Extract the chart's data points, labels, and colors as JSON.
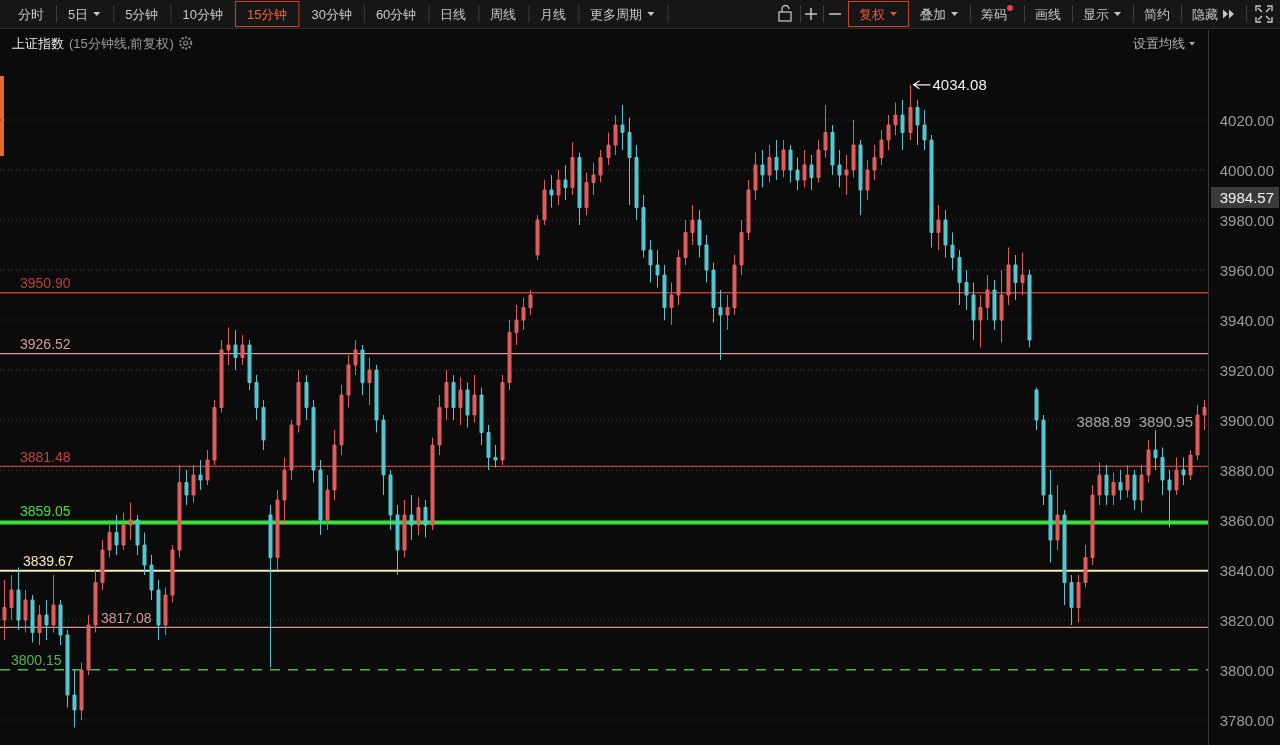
{
  "chart_data": {
    "type": "candlestick",
    "title": "上证指数",
    "subtitle": "(15分钟线,前复权)",
    "categories": [
      null,
      null,
      null,
      null,
      null,
      null,
      null,
      null,
      null,
      null,
      null,
      null,
      null,
      null,
      null,
      null,
      null,
      null,
      null,
      null,
      null,
      null,
      null,
      null,
      null,
      null,
      null,
      null,
      null,
      null,
      null,
      null,
      null,
      null,
      null,
      null,
      null,
      null,
      null,
      null,
      null,
      null,
      null,
      null,
      null,
      null,
      null,
      null,
      null,
      null,
      null,
      null,
      null,
      null,
      null,
      null,
      null,
      null,
      null,
      null,
      null,
      null,
      null,
      null,
      null,
      null,
      null,
      null,
      null,
      null,
      null,
      null,
      null,
      null,
      null,
      null,
      null,
      null,
      null,
      null,
      null,
      null,
      null,
      null,
      null,
      null,
      null,
      null,
      null,
      null,
      null,
      null,
      null,
      null,
      null,
      null,
      null,
      null,
      null,
      null,
      null,
      null,
      null,
      null,
      null,
      null,
      null,
      null,
      null,
      null,
      null,
      null,
      null,
      null,
      null,
      null,
      null,
      null,
      null,
      null,
      null,
      null,
      null,
      null,
      null,
      null,
      null,
      null,
      null,
      null,
      null,
      null,
      null,
      null,
      null,
      null,
      null,
      null,
      null,
      null,
      null,
      null,
      null,
      null,
      null,
      null,
      null,
      null,
      null,
      null,
      null,
      null,
      null,
      null,
      null,
      null,
      null,
      null,
      null,
      null,
      null,
      null,
      null,
      null,
      null,
      null,
      null,
      null,
      null,
      null,
      null,
      null
    ],
    "ohlc": [
      [
        3820,
        3836,
        3812,
        3825
      ],
      [
        3825,
        3838,
        3820,
        3832
      ],
      [
        3832,
        3841,
        3816,
        3820
      ],
      [
        3820,
        3832,
        3815,
        3828
      ],
      [
        3828,
        3830,
        3811,
        3815
      ],
      [
        3815,
        3826,
        3810,
        3822
      ],
      [
        3822,
        3828,
        3812,
        3818
      ],
      [
        3818,
        3838,
        3815,
        3826
      ],
      [
        3826,
        3828,
        3810,
        3814
      ],
      [
        3814,
        3816,
        3785,
        3790
      ],
      [
        3790,
        3800,
        3777,
        3784
      ],
      [
        3784,
        3803,
        3780,
        3800
      ],
      [
        3800,
        3822,
        3798,
        3818
      ],
      [
        3818,
        3840,
        3815,
        3835
      ],
      [
        3835,
        3852,
        3832,
        3848
      ],
      [
        3848,
        3860,
        3845,
        3855
      ],
      [
        3855,
        3862,
        3846,
        3850
      ],
      [
        3850,
        3863,
        3848,
        3858
      ],
      [
        3858,
        3867,
        3852,
        3860
      ],
      [
        3860,
        3862,
        3846,
        3850
      ],
      [
        3850,
        3855,
        3838,
        3842
      ],
      [
        3842,
        3846,
        3828,
        3832
      ],
      [
        3832,
        3836,
        3812,
        3818
      ],
      [
        3818,
        3833,
        3814,
        3830
      ],
      [
        3830,
        3850,
        3827,
        3848
      ],
      [
        3848,
        3882,
        3845,
        3875
      ],
      [
        3875,
        3880,
        3866,
        3870
      ],
      [
        3870,
        3882,
        3867,
        3878
      ],
      [
        3878,
        3884,
        3872,
        3876
      ],
      [
        3876,
        3888,
        3874,
        3884
      ],
      [
        3884,
        3908,
        3882,
        3905
      ],
      [
        3905,
        3932,
        3903,
        3928
      ],
      [
        3928,
        3937,
        3922,
        3930
      ],
      [
        3930,
        3936,
        3920,
        3925
      ],
      [
        3925,
        3934,
        3922,
        3930
      ],
      [
        3930,
        3932,
        3912,
        3915
      ],
      [
        3915,
        3918,
        3900,
        3905
      ],
      [
        3905,
        3908,
        3888,
        3892
      ],
      [
        3862,
        3866,
        3801,
        3845
      ],
      [
        3845,
        3872,
        3840,
        3868
      ],
      [
        3868,
        3885,
        3858,
        3880
      ],
      [
        3880,
        3900,
        3876,
        3898
      ],
      [
        3898,
        3920,
        3895,
        3915
      ],
      [
        3915,
        3918,
        3900,
        3905
      ],
      [
        3905,
        3908,
        3875,
        3880
      ],
      [
        3880,
        3884,
        3854,
        3860
      ],
      [
        3860,
        3878,
        3856,
        3872
      ],
      [
        3872,
        3896,
        3868,
        3890
      ],
      [
        3890,
        3914,
        3886,
        3910
      ],
      [
        3910,
        3926,
        3905,
        3922
      ],
      [
        3922,
        3932,
        3918,
        3928
      ],
      [
        3928,
        3930,
        3910,
        3915
      ],
      [
        3915,
        3925,
        3906,
        3920
      ],
      [
        3920,
        3922,
        3895,
        3900
      ],
      [
        3900,
        3902,
        3870,
        3878
      ],
      [
        3878,
        3880,
        3856,
        3862
      ],
      [
        3862,
        3866,
        3838,
        3848
      ],
      [
        3848,
        3868,
        3845,
        3862
      ],
      [
        3862,
        3870,
        3852,
        3858
      ],
      [
        3858,
        3869,
        3854,
        3865
      ],
      [
        3865,
        3868,
        3853,
        3858
      ],
      [
        3858,
        3893,
        3856,
        3890
      ],
      [
        3890,
        3910,
        3886,
        3905
      ],
      [
        3905,
        3920,
        3900,
        3915
      ],
      [
        3915,
        3918,
        3900,
        3905
      ],
      [
        3905,
        3917,
        3898,
        3912
      ],
      [
        3912,
        3915,
        3897,
        3902
      ],
      [
        3902,
        3918,
        3899,
        3910
      ],
      [
        3910,
        3913,
        3890,
        3895
      ],
      [
        3895,
        3898,
        3880,
        3885
      ],
      [
        3885,
        3890,
        3881,
        3884
      ],
      [
        3884,
        3918,
        3882,
        3915
      ],
      [
        3915,
        3940,
        3912,
        3935
      ],
      [
        3935,
        3946,
        3930,
        3940
      ],
      [
        3940,
        3949,
        3936,
        3945
      ],
      [
        3945,
        3952,
        3942,
        3950
      ],
      [
        3966,
        3982,
        3964,
        3980
      ],
      [
        3980,
        3996,
        3978,
        3992
      ],
      [
        3992,
        3998,
        3985,
        3990
      ],
      [
        3990,
        4000,
        3986,
        3996
      ],
      [
        3996,
        4002,
        3988,
        3993
      ],
      [
        3993,
        4011,
        3990,
        4005
      ],
      [
        4005,
        4007,
        3978,
        3985
      ],
      [
        3985,
        3999,
        3982,
        3995
      ],
      [
        3995,
        4003,
        3990,
        3998
      ],
      [
        3998,
        4008,
        3995,
        4005
      ],
      [
        4005,
        4015,
        4002,
        4010
      ],
      [
        4010,
        4022,
        4006,
        4018
      ],
      [
        4018,
        4026,
        4008,
        4015
      ],
      [
        4015,
        4021,
        3986,
        4005
      ],
      [
        4005,
        4010,
        3980,
        3985
      ],
      [
        3985,
        3990,
        3965,
        3968
      ],
      [
        3968,
        3972,
        3955,
        3962
      ],
      [
        3962,
        3968,
        3953,
        3958
      ],
      [
        3958,
        3962,
        3940,
        3945
      ],
      [
        3945,
        3955,
        3938,
        3950
      ],
      [
        3950,
        3968,
        3946,
        3965
      ],
      [
        3965,
        3980,
        3962,
        3975
      ],
      [
        3975,
        3986,
        3970,
        3980
      ],
      [
        3980,
        3984,
        3965,
        3970
      ],
      [
        3970,
        3974,
        3955,
        3960
      ],
      [
        3960,
        3963,
        3939,
        3945
      ],
      [
        3945,
        3952,
        3924,
        3942
      ],
      [
        3942,
        3950,
        3936,
        3945
      ],
      [
        3945,
        3966,
        3942,
        3962
      ],
      [
        3962,
        3980,
        3958,
        3975
      ],
      [
        3975,
        3996,
        3972,
        3992
      ],
      [
        3992,
        4007,
        3988,
        4002
      ],
      [
        4002,
        4008,
        3993,
        3998
      ],
      [
        3998,
        4010,
        3995,
        4005
      ],
      [
        4005,
        4012,
        3996,
        4000
      ],
      [
        4000,
        4012,
        3997,
        4008
      ],
      [
        4008,
        4010,
        3995,
        4000
      ],
      [
        4000,
        4005,
        3992,
        3996
      ],
      [
        3996,
        4008,
        3993,
        4002
      ],
      [
        4002,
        4006,
        3992,
        3997
      ],
      [
        3997,
        4012,
        3995,
        4008
      ],
      [
        4008,
        4026,
        4005,
        4015
      ],
      [
        4015,
        4018,
        3998,
        4002
      ],
      [
        4002,
        4008,
        3993,
        3998
      ],
      [
        3998,
        4006,
        3990,
        4000
      ],
      [
        4000,
        4020,
        3997,
        4010
      ],
      [
        4010,
        4012,
        3982,
        3992
      ],
      [
        3992,
        4004,
        3988,
        4000
      ],
      [
        4000,
        4010,
        3996,
        4005
      ],
      [
        4005,
        4016,
        4002,
        4012
      ],
      [
        4012,
        4022,
        4008,
        4018
      ],
      [
        4018,
        4027,
        4014,
        4022
      ],
      [
        4022,
        4028,
        4008,
        4015
      ],
      [
        4015,
        4034.08,
        4012,
        4025
      ],
      [
        4025,
        4028,
        4010,
        4018
      ],
      [
        4018,
        4024,
        4008,
        4012
      ],
      [
        4012,
        4014,
        3969,
        3975
      ],
      [
        3975,
        3986,
        3968,
        3980
      ],
      [
        3980,
        3984,
        3965,
        3970
      ],
      [
        3970,
        3975,
        3960,
        3965
      ],
      [
        3965,
        3968,
        3946,
        3955
      ],
      [
        3955,
        3960,
        3944,
        3950
      ],
      [
        3950,
        3955,
        3932,
        3940
      ],
      [
        3940,
        3950,
        3929,
        3945
      ],
      [
        3945,
        3958,
        3940,
        3952
      ],
      [
        3952,
        3956,
        3936,
        3940
      ],
      [
        3940,
        3960,
        3931,
        3950
      ],
      [
        3950,
        3969,
        3946,
        3962
      ],
      [
        3962,
        3966,
        3948,
        3955
      ],
      [
        3955,
        3967,
        3950,
        3958
      ],
      [
        3958,
        3960,
        3929,
        3932
      ],
      [
        3912,
        3913,
        3896,
        3900
      ],
      [
        3900,
        3902,
        3866,
        3870
      ],
      [
        3870,
        3880,
        3843,
        3852
      ],
      [
        3852,
        3874,
        3848,
        3862
      ],
      [
        3862,
        3864,
        3826,
        3835
      ],
      [
        3835,
        3838,
        3818,
        3825
      ],
      [
        3825,
        3838,
        3819,
        3835
      ],
      [
        3835,
        3850,
        3833,
        3845
      ],
      [
        3845,
        3874,
        3842,
        3870
      ],
      [
        3870,
        3883,
        3866,
        3878
      ],
      [
        3878,
        3882,
        3866,
        3870
      ],
      [
        3870,
        3879,
        3866,
        3875
      ],
      [
        3875,
        3880,
        3868,
        3872
      ],
      [
        3872,
        3882,
        3869,
        3878
      ],
      [
        3878,
        3880,
        3864,
        3868
      ],
      [
        3868,
        3882,
        3863,
        3878
      ],
      [
        3878,
        3892,
        3875,
        3888
      ],
      [
        3888,
        3896,
        3880,
        3885
      ],
      [
        3885,
        3889,
        3870,
        3876
      ],
      [
        3876,
        3880,
        3857,
        3872
      ],
      [
        3872,
        3885,
        3870,
        3880
      ],
      [
        3880,
        3885,
        3874,
        3878
      ],
      [
        3878,
        3888,
        3876,
        3886
      ],
      [
        3886,
        3906,
        3884,
        3902
      ],
      [
        3902,
        3908,
        3896,
        3905
      ]
    ],
    "ylim": [
      3770,
      4056
    ],
    "yticks": [
      {
        "value": 3780,
        "label": "3780.00"
      },
      {
        "value": 3800,
        "label": "3800.00"
      },
      {
        "value": 3820,
        "label": "3820.00"
      },
      {
        "value": 3840,
        "label": "3840.00"
      },
      {
        "value": 3860,
        "label": "3860.00"
      },
      {
        "value": 3880,
        "label": "3880.00"
      },
      {
        "value": 3900,
        "label": "3900.00"
      },
      {
        "value": 3920,
        "label": "3920.00"
      },
      {
        "value": 3940,
        "label": "3940.00"
      },
      {
        "value": 3960,
        "label": "3960.00"
      },
      {
        "value": 3980,
        "label": "3980.00"
      },
      {
        "value": 4000,
        "label": "4000.00"
      },
      {
        "value": 4020,
        "label": "4020.00"
      }
    ],
    "tick_labels": "y",
    "grid": "y",
    "ref_lines": [
      {
        "axis": "y",
        "value": 3950.9,
        "label": "3950.90",
        "color": "#b8403c"
      },
      {
        "axis": "y",
        "value": 3926.52,
        "label": "3926.52",
        "color": "#d49a98"
      },
      {
        "axis": "y",
        "value": 3881.48,
        "label": "3881.48",
        "color": "#c8403c"
      },
      {
        "axis": "y",
        "value": 3859.05,
        "label": "3859.05",
        "color": "#3ce03c"
      },
      {
        "axis": "y",
        "value": 3839.67,
        "label": "3839.67",
        "color": "#f2ecb8"
      },
      {
        "axis": "y",
        "value": 3817.08,
        "label": "3817.08",
        "color": "#d49a98"
      },
      {
        "axis": "y",
        "value": 3800.15,
        "label": "3800.15",
        "color": "#52b452",
        "line_style": "dashed"
      }
    ],
    "annotations": [
      "分时",
      "5日",
      "5分钟",
      "10分钟",
      "15分钟",
      "30分钟",
      "60分钟",
      "日线",
      "周线",
      "月线",
      "更多周期",
      "复权",
      "叠加",
      "筹码",
      "画线",
      "显示",
      "简约",
      "隐藏",
      "设置均线",
      "3984.57",
      "4034.08",
      "3888.89",
      "3890.95"
    ]
  }
}
